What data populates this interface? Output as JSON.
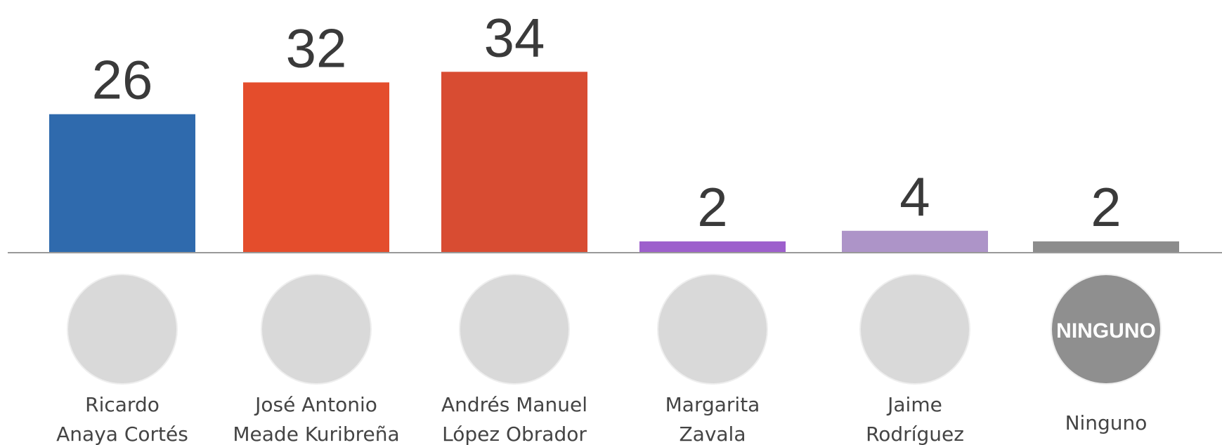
{
  "chart_data": {
    "type": "bar",
    "categories": [
      [
        "Ricardo",
        "Anaya Cortés"
      ],
      [
        "José Antonio",
        "Meade Kuribreña"
      ],
      [
        "Andrés Manuel",
        "López Obrador"
      ],
      [
        "Margarita",
        "Zavala"
      ],
      [
        "Jaime",
        "Rodríguez"
      ],
      [
        "Ninguno"
      ]
    ],
    "values": [
      26,
      32,
      34,
      2,
      4,
      2
    ],
    "colors": [
      "#2f6aad",
      "#e44d2c",
      "#d84c32",
      "#9d5fcc",
      "#ad94c8",
      "#8c8c8c"
    ],
    "none_badge": "NINGUNO"
  }
}
